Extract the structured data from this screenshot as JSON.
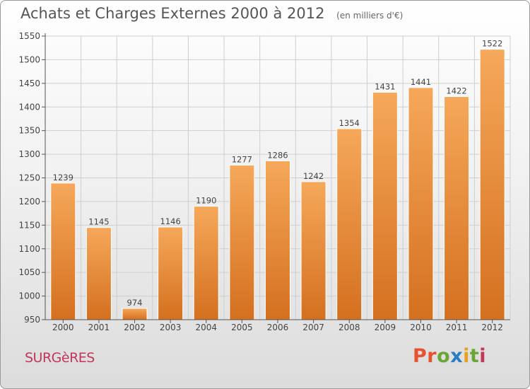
{
  "header": {
    "title": "Achats et Charges Externes 2000 à 2012",
    "subtitle": "(en milliers d'€)"
  },
  "footer": {
    "commune": "SURGèRES",
    "brand": "Proxiti",
    "brand_colors": [
      "#e6532e",
      "#e6532e",
      "#6aa637",
      "#2c7cc4",
      "#e6a21e",
      "#6aa637",
      "#c2365a"
    ]
  },
  "colors": {
    "bar_top": "#f6a85a",
    "bar_bottom": "#d4701f",
    "bar_edge": "#ffffff",
    "grid": "#cfcfcf",
    "text": "#444444"
  },
  "chart_data": {
    "type": "bar",
    "categories": [
      "2000",
      "2001",
      "2002",
      "2003",
      "2004",
      "2005",
      "2006",
      "2007",
      "2008",
      "2009",
      "2010",
      "2011",
      "2012"
    ],
    "values": [
      1239,
      1145,
      974,
      1146,
      1190,
      1277,
      1286,
      1242,
      1354,
      1431,
      1441,
      1422,
      1522
    ],
    "ylim": [
      950,
      1550
    ],
    "yticks": [
      950,
      1000,
      1050,
      1100,
      1150,
      1200,
      1250,
      1300,
      1350,
      1400,
      1450,
      1500,
      1550
    ],
    "grid": true,
    "data_labels": true
  }
}
